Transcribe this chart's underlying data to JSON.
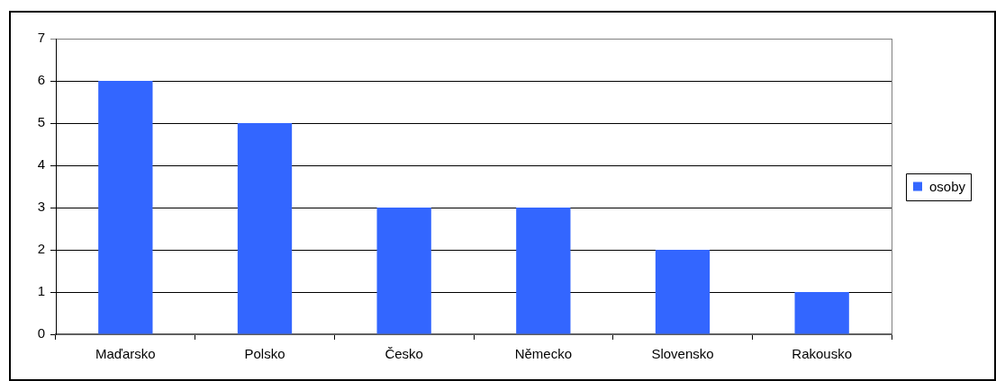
{
  "chart_data": {
    "type": "bar",
    "categories": [
      "Maďarsko",
      "Polsko",
      "Česko",
      "Německo",
      "Slovensko",
      "Rakousko"
    ],
    "series": [
      {
        "name": "osoby",
        "color": "#3366ff",
        "values": [
          6,
          5,
          3,
          3,
          2,
          1
        ]
      }
    ],
    "ylim": [
      0,
      7
    ],
    "yticks": [
      0,
      1,
      2,
      3,
      4,
      5,
      6,
      7
    ],
    "grid": "y",
    "legend": "right"
  }
}
